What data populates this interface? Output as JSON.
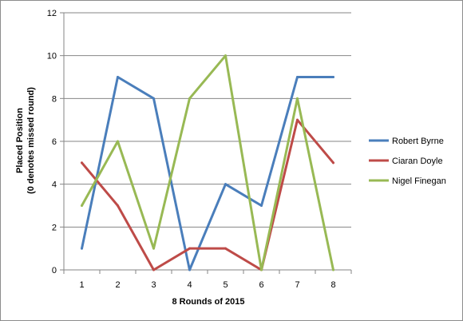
{
  "chart_data": {
    "type": "line",
    "categories": [
      "1",
      "2",
      "3",
      "4",
      "5",
      "6",
      "7",
      "8"
    ],
    "series": [
      {
        "name": "Robert Byrne",
        "color": "#4a7ebb",
        "values": [
          1,
          9,
          8,
          0,
          4,
          3,
          9,
          9
        ]
      },
      {
        "name": "Ciaran Doyle",
        "color": "#be4b48",
        "values": [
          5,
          3,
          0,
          1,
          1,
          0,
          7,
          5
        ]
      },
      {
        "name": "Nigel Finegan",
        "color": "#98b954",
        "values": [
          3,
          6,
          1,
          8,
          10,
          0,
          8,
          0
        ]
      }
    ],
    "xlabel": "8 Rounds of 2015",
    "ylabel_line1": "Placed Position",
    "ylabel_line2": "(0 denotes missed round)",
    "ylim": [
      0,
      12
    ],
    "ytick_step": 2,
    "yticks": [
      "0",
      "2",
      "4",
      "6",
      "8",
      "10",
      "12"
    ],
    "grid": true,
    "legend_position": "right",
    "colors": {
      "grid": "#868686",
      "axis": "#868686"
    }
  }
}
